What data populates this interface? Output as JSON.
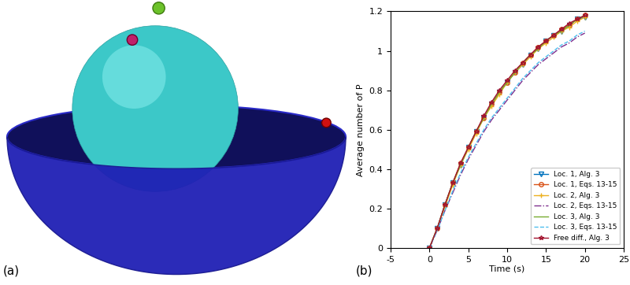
{
  "panel_labels": [
    "(a)",
    "(b)"
  ],
  "chart_data": {
    "type": "line",
    "x_label": "Time (s)",
    "y_label": "Average number of P",
    "x": [
      0,
      1,
      2,
      3,
      4,
      5,
      6,
      7,
      8,
      9,
      10,
      11,
      12,
      13,
      14,
      15,
      16,
      17,
      18,
      19,
      20
    ],
    "xlim": [
      -5,
      25
    ],
    "xticks": [
      -5,
      0,
      5,
      10,
      15,
      20,
      25
    ],
    "ylim": [
      0,
      1.2
    ],
    "yticks": [
      0,
      0.2,
      0.4,
      0.6,
      0.8,
      1,
      1.2
    ],
    "legend": "lower right",
    "series": [
      {
        "name": "Loc. 1, Alg. 3",
        "color": "#0072BD",
        "marker": "triangle_down",
        "line_style": "solid",
        "values": [
          0,
          0.1,
          0.22,
          0.33,
          0.42,
          0.51,
          0.59,
          0.66,
          0.73,
          0.79,
          0.84,
          0.89,
          0.93,
          0.98,
          1.01,
          1.05,
          1.08,
          1.1,
          1.13,
          1.16,
          1.17
        ]
      },
      {
        "name": "Loc. 1, Eqs. 13-15",
        "color": "#D95319",
        "marker": "circle",
        "line_style": "solid",
        "values": [
          0,
          0.1,
          0.22,
          0.33,
          0.43,
          0.51,
          0.59,
          0.66,
          0.73,
          0.79,
          0.84,
          0.89,
          0.94,
          0.98,
          1.02,
          1.05,
          1.08,
          1.11,
          1.13,
          1.16,
          1.18
        ]
      },
      {
        "name": "Loc. 2, Alg. 3",
        "color": "#EDB120",
        "marker": "plus",
        "line_style": "solid",
        "values": [
          0,
          0.1,
          0.21,
          0.32,
          0.42,
          0.5,
          0.58,
          0.66,
          0.72,
          0.78,
          0.84,
          0.89,
          0.93,
          0.97,
          1.01,
          1.04,
          1.07,
          1.1,
          1.12,
          1.15,
          1.17
        ]
      },
      {
        "name": "Loc. 2, Eqs. 13-15",
        "color": "#7E2F8E",
        "marker": "none",
        "line_style": "dashdot",
        "values": [
          0,
          0.09,
          0.19,
          0.28,
          0.37,
          0.45,
          0.52,
          0.59,
          0.65,
          0.7,
          0.75,
          0.8,
          0.85,
          0.89,
          0.93,
          0.96,
          0.99,
          1.02,
          1.04,
          1.07,
          1.09
        ]
      },
      {
        "name": "Loc. 3, Alg. 3",
        "color": "#77AC30",
        "marker": "none",
        "line_style": "solid",
        "values": [
          0,
          0.1,
          0.22,
          0.33,
          0.42,
          0.51,
          0.59,
          0.66,
          0.73,
          0.79,
          0.84,
          0.89,
          0.94,
          0.98,
          1.01,
          1.05,
          1.08,
          1.1,
          1.13,
          1.16,
          1.18
        ]
      },
      {
        "name": "Loc. 3, Eqs. 13-15",
        "color": "#4DBEEE",
        "marker": "none",
        "line_style": "dashed",
        "values": [
          0,
          0.09,
          0.19,
          0.29,
          0.38,
          0.46,
          0.53,
          0.6,
          0.66,
          0.71,
          0.76,
          0.81,
          0.86,
          0.9,
          0.94,
          0.97,
          1.0,
          1.03,
          1.05,
          1.08,
          1.1
        ]
      },
      {
        "name": "Free diff., Alg. 3",
        "color": "#A2142F",
        "marker": "star",
        "line_style": "solid",
        "values": [
          0,
          0.1,
          0.22,
          0.33,
          0.43,
          0.51,
          0.59,
          0.67,
          0.74,
          0.8,
          0.85,
          0.9,
          0.94,
          0.98,
          1.02,
          1.05,
          1.08,
          1.11,
          1.14,
          1.16,
          1.18
        ]
      }
    ]
  }
}
